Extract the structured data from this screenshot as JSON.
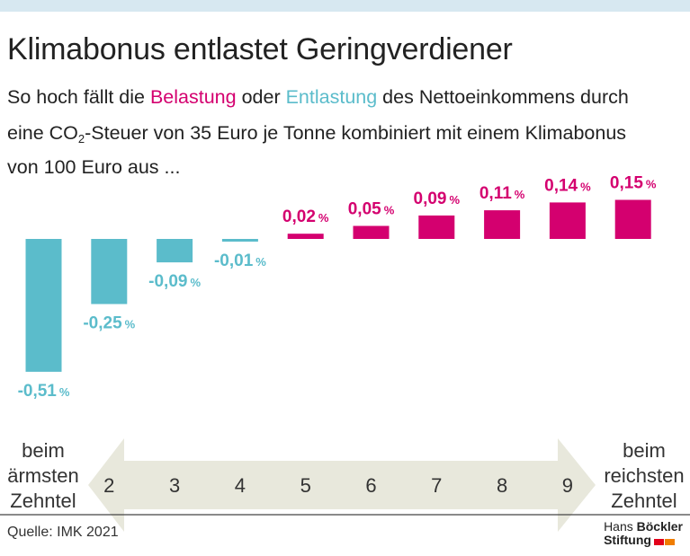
{
  "header": {
    "title": "Klimabonus entlastet Geringverdiener",
    "subtitle_l1_a": "So hoch fällt die ",
    "subtitle_l1_belastung": "Belastung",
    "subtitle_l1_b": " oder ",
    "subtitle_l1_entlastung": "Entlastung",
    "subtitle_l1_c": " des Nettoeinkommens durch",
    "subtitle_l2_a": "eine CO",
    "subtitle_l2_sub": "2",
    "subtitle_l2_b": "-Steuer von 35 Euro je Tonne kombiniert mit einem Klimabonus",
    "subtitle_l3": "von 100 Euro aus ..."
  },
  "chart_data": {
    "type": "bar",
    "title": "Klimabonus entlastet Geringverdiener",
    "xlabel": "",
    "ylabel": "",
    "categories": [
      "beim ärmsten Zehntel",
      "2",
      "3",
      "4",
      "5",
      "6",
      "7",
      "8",
      "9",
      "beim reichsten Zehntel"
    ],
    "values": [
      -0.51,
      -0.25,
      -0.09,
      -0.01,
      0.02,
      0.05,
      0.09,
      0.11,
      0.14,
      0.15
    ],
    "labels": [
      "-0,51 %",
      "-0,25 %",
      "-0,09 %",
      "-0,01 %",
      "0,02 %",
      "0,05 %",
      "0,09 %",
      "0,11 %",
      "0,14 %",
      "0,15 %"
    ],
    "ylim": [
      -0.51,
      0.15
    ],
    "colors": {
      "negative": "#5bbccb",
      "positive": "#d4006f"
    },
    "grid": false,
    "axis_left_label": [
      "beim",
      "ärmsten",
      "Zehntel"
    ],
    "axis_right_label": [
      "beim",
      "reichsten",
      "Zehntel"
    ],
    "axis_mid_labels": [
      "2",
      "3",
      "4",
      "5",
      "6",
      "7",
      "8",
      "9"
    ],
    "arrow_color": "#e8e8dc"
  },
  "footer": {
    "source": "Quelle: IMK 2021",
    "brand_line1_a": "Hans ",
    "brand_line1_b": "Böckler",
    "brand_line2": "Stiftung"
  }
}
